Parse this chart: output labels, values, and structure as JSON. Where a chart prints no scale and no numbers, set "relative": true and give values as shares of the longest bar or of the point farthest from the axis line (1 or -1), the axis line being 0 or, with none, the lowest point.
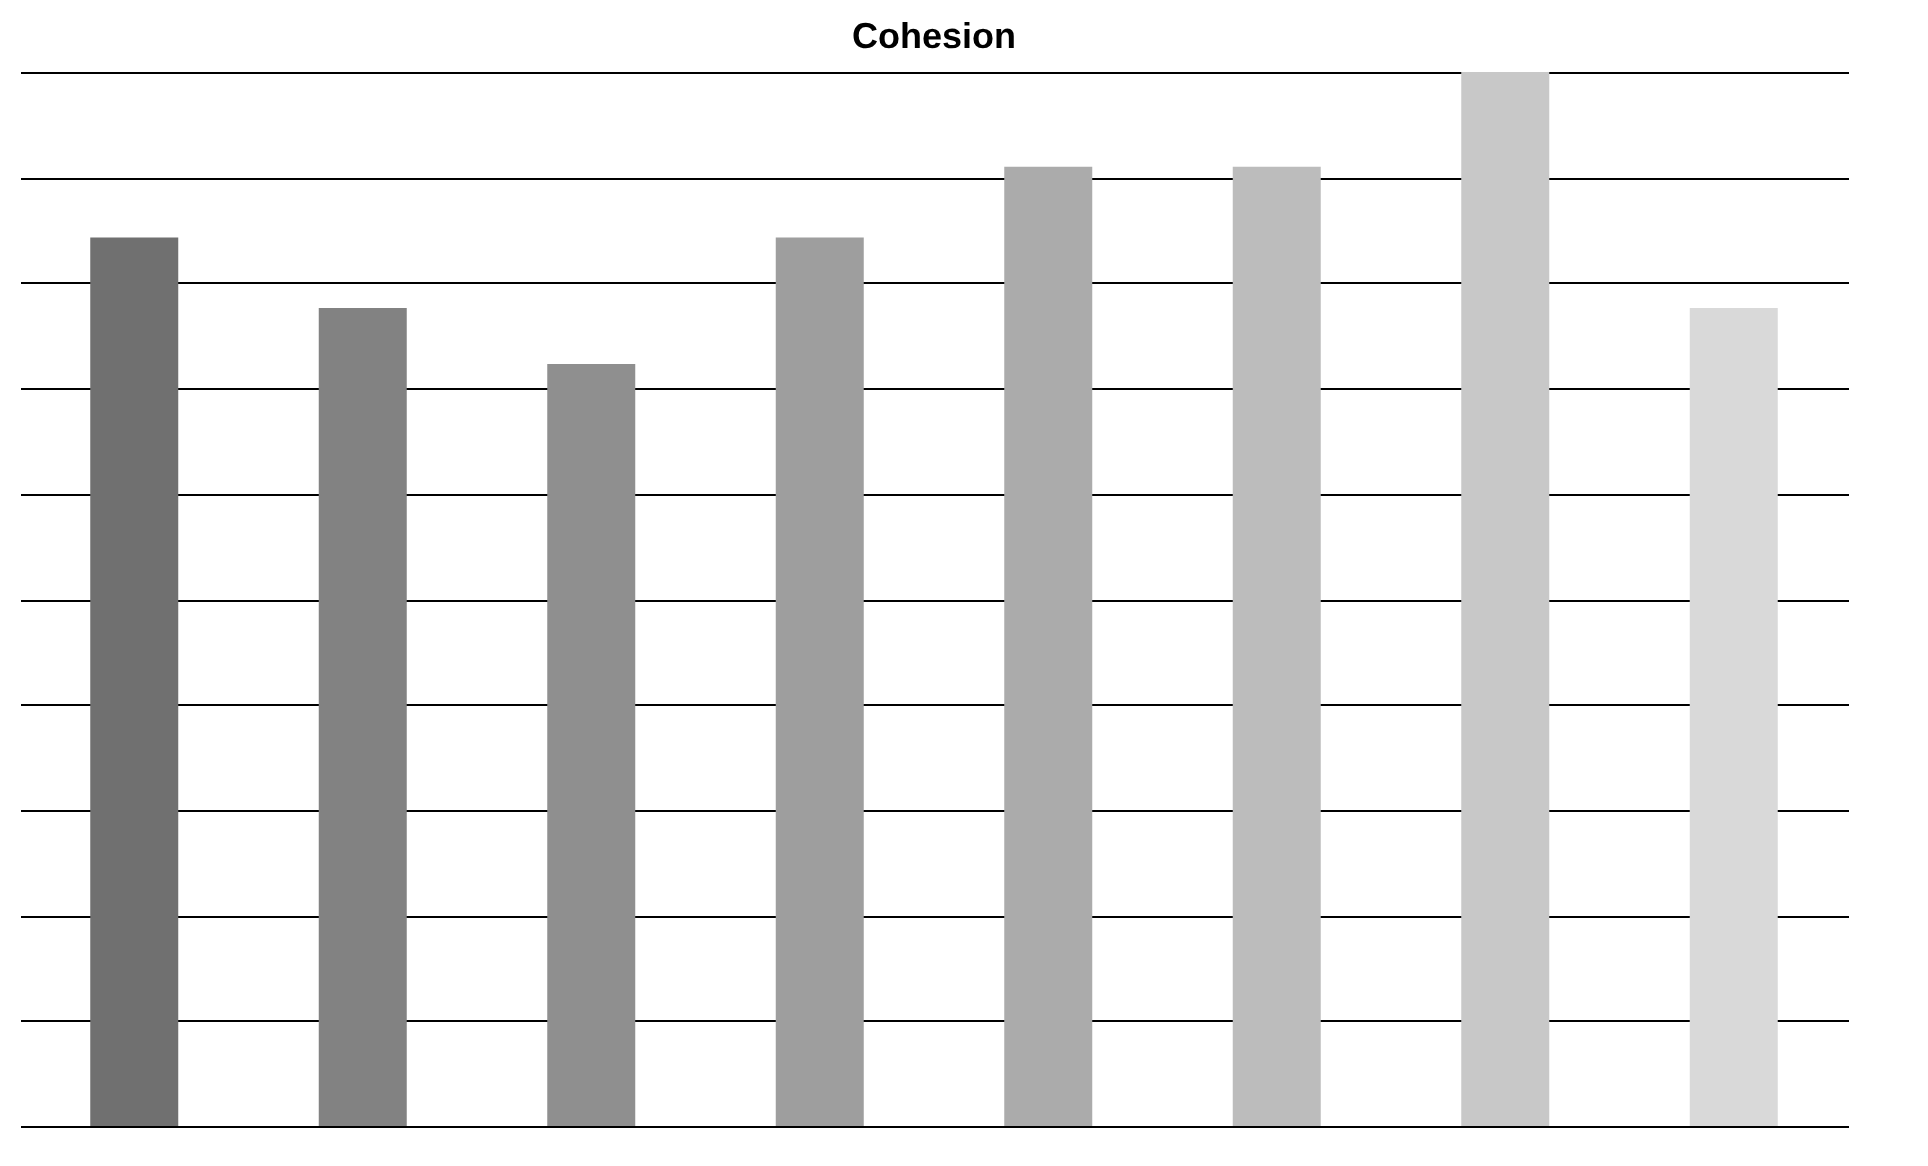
{
  "chart_data": {
    "type": "bar",
    "title": "Cohesion",
    "relative": true,
    "categories": [
      null,
      null,
      null,
      null,
      null,
      null,
      null,
      null
    ],
    "values": [
      0.843,
      0.776,
      0.723,
      0.843,
      0.91,
      0.91,
      1,
      0.776
    ],
    "colors": [
      "#707070",
      "#828282",
      "#8f8f8f",
      "#9e9e9e",
      "#ababab",
      "#bcbcbc",
      "#c8c8c8",
      "#d9d9d9"
    ],
    "grid": "y"
  }
}
